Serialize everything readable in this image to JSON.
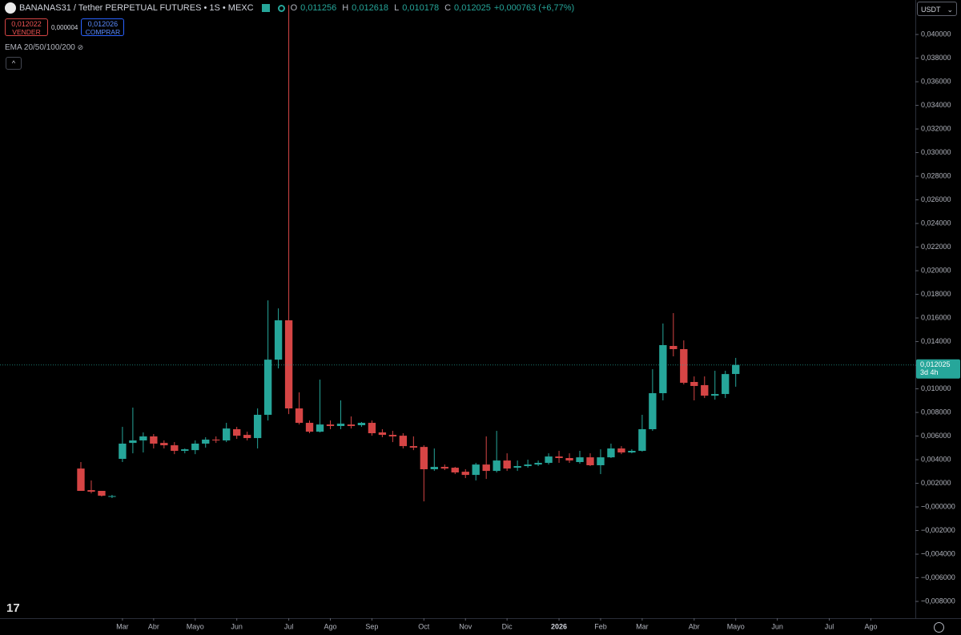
{
  "header": {
    "symbol": "BANANAS31 / Tether PERPETUAL FUTURES • 1S • MEXC",
    "open_label": "O",
    "open": "0,011256",
    "high_label": "H",
    "high": "0,012618",
    "low_label": "L",
    "low": "0,010178",
    "close_label": "C",
    "close": "0,012025",
    "change": "+0,000763 (+6,77%)"
  },
  "trade": {
    "sell_price": "0,012022",
    "sell_label": "VENDER",
    "spread": "0,000004",
    "buy_price": "0,012026",
    "buy_label": "COMPRAR"
  },
  "indicator": "EMA 20/50/100/200",
  "currency": "USDT",
  "price_tag": {
    "price": "0,012025",
    "countdown": "3d 4h"
  },
  "chart_data": {
    "type": "candlestick",
    "up_color": "#26a69a",
    "down_color": "#d64545",
    "grid": false,
    "open": [
      0.00325,
      0.00142,
      0.00136,
      0.00085,
      0.00407,
      0.00542,
      0.00563,
      0.00597,
      0.00542,
      0.00522,
      0.00475,
      0.00481,
      0.00536,
      0.0057,
      0.00563,
      0.00658,
      0.0061,
      0.00583,
      0.0078,
      0.01247,
      0.0158,
      0.00834,
      0.00712,
      0.00637,
      0.00698,
      0.00685,
      0.00698,
      0.00692,
      0.00712,
      0.00631,
      0.0061,
      0.00603,
      0.00515,
      0.00508,
      0.00319,
      0.00339,
      0.00332,
      0.00298,
      0.00271,
      0.00359,
      0.00305,
      0.00393,
      0.00332,
      0.00346,
      0.00359,
      0.00373,
      0.00427,
      0.00414,
      0.0038,
      0.0042,
      0.00353,
      0.0042,
      0.00495,
      0.00461,
      0.00475,
      0.00658,
      0.00963,
      0.01363,
      0.01336,
      0.01058,
      0.01031,
      0.00942,
      0.00956,
      0.011256
    ],
    "high": [
      0.0038,
      0.00224,
      0.00136,
      0.00102,
      0.00678,
      0.00841,
      0.00631,
      0.00617,
      0.00563,
      0.00549,
      0.00495,
      0.00563,
      0.0059,
      0.00597,
      0.00712,
      0.00678,
      0.00637,
      0.00834,
      0.01749,
      0.01681,
      0.0425,
      0.0097,
      0.00732,
      0.01078,
      0.00732,
      0.00902,
      0.00766,
      0.00719,
      0.00732,
      0.00658,
      0.00644,
      0.00624,
      0.00597,
      0.00522,
      0.00495,
      0.00359,
      0.00339,
      0.00319,
      0.00373,
      0.00597,
      0.00644,
      0.00454,
      0.00393,
      0.004,
      0.00393,
      0.00454,
      0.00475,
      0.00454,
      0.00475,
      0.00454,
      0.00488,
      0.00536,
      0.00515,
      0.00488,
      0.0078,
      0.01166,
      0.01553,
      0.01641,
      0.0141,
      0.01105,
      0.01105,
      0.01153,
      0.01153,
      0.012618
    ],
    "low": [
      0.00136,
      0.00115,
      0.00088,
      0.00075,
      0.0038,
      0.00454,
      0.00461,
      0.00495,
      0.00495,
      0.00447,
      0.00454,
      0.00447,
      0.00502,
      0.00542,
      0.00549,
      0.00576,
      0.00563,
      0.00495,
      0.00732,
      0.01173,
      0.00786,
      0.00698,
      0.00624,
      0.00631,
      0.00658,
      0.00658,
      0.00664,
      0.00678,
      0.00603,
      0.0059,
      0.00549,
      0.00495,
      0.00481,
      0.00047,
      0.00305,
      0.00312,
      0.00278,
      0.00244,
      0.00224,
      0.00237,
      0.00292,
      0.00305,
      0.00305,
      0.00332,
      0.00346,
      0.00359,
      0.00373,
      0.00373,
      0.00366,
      0.00346,
      0.00278,
      0.00414,
      0.00447,
      0.00454,
      0.00468,
      0.00644,
      0.00902,
      0.01275,
      0.01037,
      0.00902,
      0.00922,
      0.00908,
      0.00922,
      0.010178
    ],
    "close": [
      0.00136,
      0.00129,
      0.00095,
      0.00092,
      0.00536,
      0.00563,
      0.00597,
      0.00536,
      0.00522,
      0.00475,
      0.00488,
      0.00536,
      0.0057,
      0.00563,
      0.00664,
      0.00603,
      0.00583,
      0.0078,
      0.01247,
      0.0158,
      0.00834,
      0.00712,
      0.00637,
      0.00698,
      0.00685,
      0.00705,
      0.00685,
      0.00712,
      0.00624,
      0.0061,
      0.00597,
      0.00515,
      0.00502,
      0.00319,
      0.00339,
      0.00325,
      0.00292,
      0.00271,
      0.00359,
      0.00305,
      0.00393,
      0.00325,
      0.00346,
      0.00359,
      0.00373,
      0.00427,
      0.00414,
      0.00393,
      0.0042,
      0.00353,
      0.0042,
      0.00495,
      0.00461,
      0.00475,
      0.00658,
      0.00963,
      0.0137,
      0.01336,
      0.01051,
      0.01024,
      0.00942,
      0.00956,
      0.01125,
      0.012025
    ],
    "ylim": [
      -0.00942,
      0.04292
    ],
    "yticks": [
      {
        "value": 0.04,
        "label": "0,040000"
      },
      {
        "value": 0.038,
        "label": "0,038000"
      },
      {
        "value": 0.036,
        "label": "0,036000"
      },
      {
        "value": 0.034,
        "label": "0,034000"
      },
      {
        "value": 0.032,
        "label": "0,032000"
      },
      {
        "value": 0.03,
        "label": "0,030000"
      },
      {
        "value": 0.028,
        "label": "0,028000"
      },
      {
        "value": 0.026,
        "label": "0,026000"
      },
      {
        "value": 0.024,
        "label": "0,024000"
      },
      {
        "value": 0.022,
        "label": "0,022000"
      },
      {
        "value": 0.02,
        "label": "0,020000"
      },
      {
        "value": 0.018,
        "label": "0,018000"
      },
      {
        "value": 0.016,
        "label": "0,016000"
      },
      {
        "value": 0.014,
        "label": "0,014000"
      },
      {
        "value": 0.012,
        "label": "0,012000"
      },
      {
        "value": 0.01,
        "label": "0,010000"
      },
      {
        "value": 0.008,
        "label": "0,008000"
      },
      {
        "value": 0.006,
        "label": "0,006000"
      },
      {
        "value": 0.004,
        "label": "0,004000"
      },
      {
        "value": 0.002,
        "label": "0,002000"
      },
      {
        "value": 0,
        "label": "−0,000000"
      },
      {
        "value": -0.002,
        "label": "−0,002000"
      },
      {
        "value": -0.004,
        "label": "−0,004000"
      },
      {
        "value": -0.006,
        "label": "−0,006000"
      },
      {
        "value": -0.008,
        "label": "−0,008000"
      }
    ],
    "xlim": [
      -7.78,
      80.28
    ],
    "xticks": [
      {
        "value": 4,
        "label": "Mar"
      },
      {
        "value": 7,
        "label": "Abr"
      },
      {
        "value": 11,
        "label": "Mayo"
      },
      {
        "value": 15,
        "label": "Jun"
      },
      {
        "value": 20,
        "label": "Jul"
      },
      {
        "value": 24,
        "label": "Ago"
      },
      {
        "value": 28,
        "label": "Sep"
      },
      {
        "value": 33,
        "label": "Oct"
      },
      {
        "value": 37,
        "label": "Nov"
      },
      {
        "value": 41,
        "label": "Dic"
      },
      {
        "value": 46,
        "label": "2026"
      },
      {
        "value": 50,
        "label": "Feb"
      },
      {
        "value": 54,
        "label": "Mar"
      },
      {
        "value": 59,
        "label": "Abr"
      },
      {
        "value": 63,
        "label": "Mayo"
      },
      {
        "value": 67,
        "label": "Jun"
      },
      {
        "value": 72,
        "label": "Jul"
      },
      {
        "value": 76,
        "label": "Ago"
      }
    ]
  }
}
